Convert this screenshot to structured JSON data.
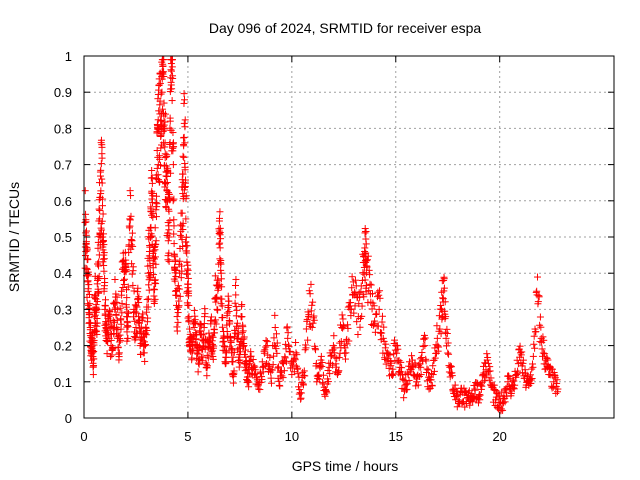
{
  "chart_data": {
    "type": "scatter",
    "title": "Day 096 of 2024, SRMTID for receiver espa",
    "xlabel": "GPS time / hours",
    "ylabel": "SRMTID / TECUs",
    "xlim": [
      0,
      25.5
    ],
    "ylim": [
      0,
      1
    ],
    "x_ticks": [
      0,
      5,
      10,
      15,
      20
    ],
    "x_tick_labels": [
      "0",
      "5",
      "10",
      "15",
      "20"
    ],
    "y_ticks": [
      0,
      0.1,
      0.2,
      0.3,
      0.4,
      0.5,
      0.6,
      0.7,
      0.8,
      0.9,
      1
    ],
    "y_tick_labels": [
      "0",
      "0.1",
      "0.2",
      "0.3",
      "0.4",
      "0.5",
      "0.6",
      "0.7",
      "0.8",
      "0.9",
      "1"
    ],
    "grid": true,
    "marker": "+",
    "color": "#ff0000",
    "series": [
      {
        "name": "SRMTID",
        "points": [
          [
            0.05,
            0.54
          ],
          [
            0.1,
            0.48
          ],
          [
            0.15,
            0.41
          ],
          [
            0.2,
            0.35
          ],
          [
            0.25,
            0.3
          ],
          [
            0.3,
            0.25
          ],
          [
            0.35,
            0.18
          ],
          [
            0.4,
            0.22
          ],
          [
            0.45,
            0.12
          ],
          [
            0.5,
            0.28
          ],
          [
            0.55,
            0.33
          ],
          [
            0.6,
            0.24
          ],
          [
            0.65,
            0.38
          ],
          [
            0.7,
            0.42
          ],
          [
            0.75,
            0.55
          ],
          [
            0.8,
            0.62
          ],
          [
            0.85,
            0.66
          ],
          [
            0.9,
            0.5
          ],
          [
            0.95,
            0.45
          ],
          [
            1.0,
            0.3
          ],
          [
            1.05,
            0.26
          ],
          [
            1.1,
            0.22
          ],
          [
            1.2,
            0.28
          ],
          [
            1.3,
            0.2
          ],
          [
            1.4,
            0.25
          ],
          [
            1.5,
            0.32
          ],
          [
            1.6,
            0.27
          ],
          [
            1.7,
            0.18
          ],
          [
            1.8,
            0.35
          ],
          [
            1.9,
            0.38
          ],
          [
            2.0,
            0.42
          ],
          [
            2.05,
            0.28
          ],
          [
            2.1,
            0.22
          ],
          [
            2.2,
            0.55
          ],
          [
            2.3,
            0.49
          ],
          [
            2.4,
            0.3
          ],
          [
            2.5,
            0.25
          ],
          [
            2.6,
            0.33
          ],
          [
            2.7,
            0.2
          ],
          [
            2.8,
            0.27
          ],
          [
            2.9,
            0.18
          ],
          [
            3.0,
            0.23
          ],
          [
            3.1,
            0.4
          ],
          [
            3.15,
            0.46
          ],
          [
            3.2,
            0.5
          ],
          [
            3.25,
            0.56
          ],
          [
            3.3,
            0.62
          ],
          [
            3.35,
            0.44
          ],
          [
            3.4,
            0.38
          ],
          [
            3.45,
            0.48
          ],
          [
            3.5,
            0.66
          ],
          [
            3.55,
            0.72
          ],
          [
            3.6,
            0.8
          ],
          [
            3.65,
            0.84
          ],
          [
            3.7,
            0.78
          ],
          [
            3.75,
            0.9
          ],
          [
            3.8,
            0.95
          ],
          [
            3.85,
            0.87
          ],
          [
            3.9,
            0.76
          ],
          [
            3.95,
            0.68
          ],
          [
            4.0,
            0.6
          ],
          [
            4.05,
            0.54
          ],
          [
            4.1,
            0.5
          ],
          [
            4.15,
            0.82
          ],
          [
            4.2,
            0.92
          ],
          [
            4.25,
            0.97
          ],
          [
            4.3,
            0.7
          ],
          [
            4.35,
            0.45
          ],
          [
            4.4,
            0.35
          ],
          [
            4.5,
            0.3
          ],
          [
            4.6,
            0.4
          ],
          [
            4.7,
            0.5
          ],
          [
            4.75,
            0.62
          ],
          [
            4.8,
            0.72
          ],
          [
            4.85,
            0.76
          ],
          [
            4.9,
            0.55
          ],
          [
            4.95,
            0.43
          ],
          [
            5.0,
            0.36
          ],
          [
            5.05,
            0.28
          ],
          [
            5.1,
            0.22
          ],
          [
            5.2,
            0.18
          ],
          [
            5.3,
            0.25
          ],
          [
            5.4,
            0.2
          ],
          [
            5.5,
            0.16
          ],
          [
            5.6,
            0.23
          ],
          [
            5.7,
            0.19
          ],
          [
            5.8,
            0.28
          ],
          [
            5.9,
            0.14
          ],
          [
            6.0,
            0.21
          ],
          [
            6.1,
            0.26
          ],
          [
            6.2,
            0.17
          ],
          [
            6.3,
            0.33
          ],
          [
            6.4,
            0.3
          ],
          [
            6.5,
            0.48
          ],
          [
            6.55,
            0.47
          ],
          [
            6.6,
            0.4
          ],
          [
            6.7,
            0.22
          ],
          [
            6.8,
            0.15
          ],
          [
            6.9,
            0.29
          ],
          [
            7.0,
            0.26
          ],
          [
            7.1,
            0.18
          ],
          [
            7.2,
            0.12
          ],
          [
            7.3,
            0.34
          ],
          [
            7.4,
            0.22
          ],
          [
            7.5,
            0.16
          ],
          [
            7.6,
            0.28
          ],
          [
            7.7,
            0.2
          ],
          [
            7.8,
            0.14
          ],
          [
            7.9,
            0.1
          ],
          [
            8.0,
            0.17
          ],
          [
            8.2,
            0.12
          ],
          [
            8.4,
            0.08
          ],
          [
            8.6,
            0.14
          ],
          [
            8.8,
            0.2
          ],
          [
            9.0,
            0.11
          ],
          [
            9.2,
            0.25
          ],
          [
            9.4,
            0.09
          ],
          [
            9.6,
            0.15
          ],
          [
            9.8,
            0.22
          ],
          [
            10.0,
            0.12
          ],
          [
            10.2,
            0.18
          ],
          [
            10.4,
            0.07
          ],
          [
            10.6,
            0.13
          ],
          [
            10.8,
            0.28
          ],
          [
            11.0,
            0.32
          ],
          [
            11.2,
            0.1
          ],
          [
            11.4,
            0.16
          ],
          [
            11.6,
            0.06
          ],
          [
            11.8,
            0.14
          ],
          [
            12.0,
            0.2
          ],
          [
            12.2,
            0.12
          ],
          [
            12.4,
            0.25
          ],
          [
            12.6,
            0.18
          ],
          [
            12.8,
            0.3
          ],
          [
            13.0,
            0.34
          ],
          [
            13.2,
            0.28
          ],
          [
            13.4,
            0.38
          ],
          [
            13.5,
            0.46
          ],
          [
            13.55,
            0.43
          ],
          [
            13.6,
            0.42
          ],
          [
            13.8,
            0.32
          ],
          [
            14.0,
            0.26
          ],
          [
            14.2,
            0.3
          ],
          [
            14.4,
            0.22
          ],
          [
            14.6,
            0.18
          ],
          [
            14.8,
            0.12
          ],
          [
            15.0,
            0.2
          ],
          [
            15.2,
            0.14
          ],
          [
            15.4,
            0.08
          ],
          [
            15.6,
            0.12
          ],
          [
            15.8,
            0.16
          ],
          [
            16.0,
            0.1
          ],
          [
            16.2,
            0.14
          ],
          [
            16.4,
            0.2
          ],
          [
            16.6,
            0.08
          ],
          [
            16.8,
            0.12
          ],
          [
            17.0,
            0.22
          ],
          [
            17.2,
            0.3
          ],
          [
            17.3,
            0.38
          ],
          [
            17.4,
            0.28
          ],
          [
            17.6,
            0.14
          ],
          [
            17.8,
            0.08
          ],
          [
            18.0,
            0.05
          ],
          [
            18.2,
            0.07
          ],
          [
            18.4,
            0.04
          ],
          [
            18.6,
            0.06
          ],
          [
            18.8,
            0.08
          ],
          [
            19.0,
            0.06
          ],
          [
            19.2,
            0.12
          ],
          [
            19.4,
            0.16
          ],
          [
            19.6,
            0.09
          ],
          [
            19.8,
            0.05
          ],
          [
            20.0,
            0.03
          ],
          [
            20.2,
            0.06
          ],
          [
            20.4,
            0.1
          ],
          [
            20.6,
            0.08
          ],
          [
            20.8,
            0.12
          ],
          [
            21.0,
            0.18
          ],
          [
            21.2,
            0.11
          ],
          [
            21.4,
            0.09
          ],
          [
            21.6,
            0.14
          ],
          [
            21.8,
            0.34
          ],
          [
            22.0,
            0.22
          ],
          [
            22.2,
            0.16
          ],
          [
            22.4,
            0.12
          ],
          [
            22.6,
            0.1
          ],
          [
            22.8,
            0.08
          ]
        ]
      }
    ]
  }
}
